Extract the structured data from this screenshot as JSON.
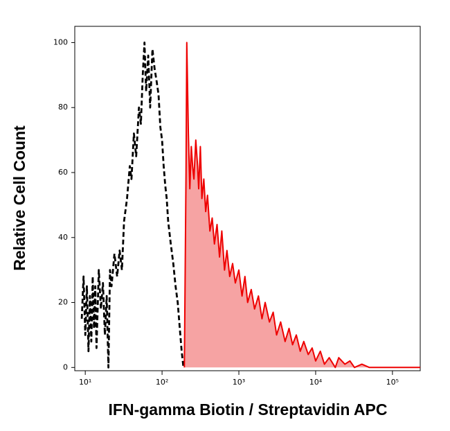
{
  "chart_data": {
    "type": "histogram-overlay",
    "xlabel": "IFN-gamma Biotin / Streptavidin APC",
    "ylabel": "Relative Cell Count",
    "xscale": "log",
    "xlim": [
      7.3,
      230000
    ],
    "ylim": [
      -1,
      105
    ],
    "xticks": [
      {
        "value": 10,
        "label": "10¹"
      },
      {
        "value": 100,
        "label": "10²"
      },
      {
        "value": 1000,
        "label": "10³"
      },
      {
        "value": 10000,
        "label": "10⁴"
      },
      {
        "value": 100000,
        "label": "10⁵"
      }
    ],
    "yticks": [
      0,
      20,
      40,
      60,
      80,
      100
    ],
    "series": [
      {
        "color": "#000000",
        "dash": true,
        "filled": false,
        "x": [
          9,
          9.5,
          10,
          10.5,
          11,
          11.5,
          12,
          12.5,
          13,
          13.5,
          14,
          15,
          16,
          17,
          18,
          19,
          20,
          21,
          22,
          24,
          26,
          28,
          30,
          32,
          35,
          38,
          40,
          43,
          46,
          50,
          53,
          56,
          59,
          62,
          66,
          70,
          75,
          80,
          85,
          90,
          95,
          100,
          105,
          110,
          115,
          120,
          130,
          140,
          150,
          160,
          170,
          180,
          190
        ],
        "values": [
          15,
          28,
          10,
          25,
          5,
          22,
          8,
          28,
          12,
          25,
          6,
          30,
          18,
          26,
          10,
          22,
          0,
          30,
          25,
          35,
          28,
          36,
          30,
          45,
          52,
          62,
          58,
          72,
          65,
          80,
          75,
          90,
          100,
          85,
          96,
          80,
          98,
          92,
          88,
          84,
          74,
          70,
          62,
          56,
          52,
          45,
          38,
          32,
          25,
          20,
          12,
          5,
          0
        ]
      },
      {
        "color": "#ee0000",
        "fill_color": "#f6a3a3",
        "dash": false,
        "filled": true,
        "x": [
          195,
          205,
          210,
          220,
          230,
          240,
          250,
          260,
          275,
          290,
          300,
          315,
          330,
          350,
          370,
          390,
          420,
          450,
          480,
          520,
          560,
          600,
          650,
          700,
          760,
          830,
          900,
          1000,
          1100,
          1200,
          1300,
          1450,
          1600,
          1800,
          2000,
          2200,
          2500,
          2800,
          3100,
          3500,
          4000,
          4500,
          5000,
          5600,
          6300,
          7000,
          8000,
          9000,
          10000,
          11500,
          13000,
          15000,
          18000,
          20000,
          24000,
          28000,
          32000,
          40000,
          50000,
          230000
        ],
        "values": [
          0,
          60,
          100,
          72,
          55,
          68,
          62,
          58,
          70,
          62,
          55,
          68,
          52,
          58,
          48,
          53,
          42,
          46,
          38,
          44,
          34,
          42,
          30,
          36,
          28,
          32,
          26,
          30,
          22,
          28,
          20,
          24,
          18,
          22,
          15,
          20,
          14,
          17,
          10,
          14,
          8,
          12,
          7,
          10,
          5,
          8,
          4,
          6,
          2,
          5,
          1,
          3,
          0,
          3,
          1,
          2,
          0,
          1,
          0,
          0
        ]
      }
    ]
  }
}
